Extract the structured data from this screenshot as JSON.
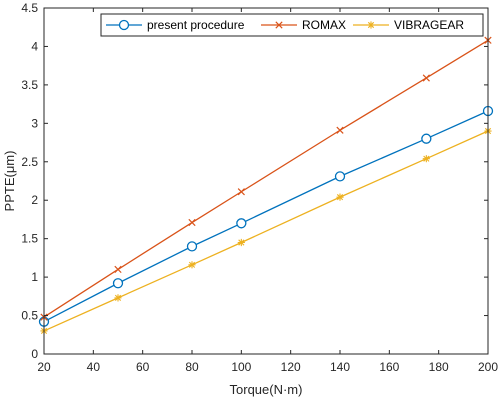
{
  "chart_data": {
    "type": "line",
    "xlabel": "Torque(N·m)",
    "ylabel": "PPTE(μm)",
    "xlim": [
      20,
      200
    ],
    "ylim": [
      0,
      4.5
    ],
    "x_ticks": [
      "20",
      "40",
      "60",
      "80",
      "100",
      "120",
      "140",
      "160",
      "180",
      "200"
    ],
    "y_ticks": [
      "0",
      "0.5",
      "1",
      "1.5",
      "2",
      "2.5",
      "3",
      "3.5",
      "4",
      "4.5"
    ],
    "grid": false,
    "legend_position": "top-right",
    "series": [
      {
        "name": "present procedure",
        "color": "#0072BD",
        "marker": "circle",
        "points": [
          [
            20,
            0.42
          ],
          [
            50,
            0.92
          ],
          [
            80,
            1.4
          ],
          [
            100,
            1.7
          ],
          [
            140,
            2.31
          ],
          [
            175,
            2.8
          ],
          [
            200,
            3.16
          ]
        ]
      },
      {
        "name": "ROMAX",
        "color": "#D95319",
        "marker": "x",
        "points": [
          [
            20,
            0.48
          ],
          [
            50,
            1.1
          ],
          [
            80,
            1.71
          ],
          [
            100,
            2.11
          ],
          [
            140,
            2.91
          ],
          [
            175,
            3.59
          ],
          [
            200,
            4.08
          ]
        ]
      },
      {
        "name": "VIBRAGEAR",
        "color": "#EDB120",
        "marker": "asterisk",
        "points": [
          [
            20,
            0.3
          ],
          [
            50,
            0.73
          ],
          [
            80,
            1.16
          ],
          [
            100,
            1.45
          ],
          [
            140,
            2.04
          ],
          [
            175,
            2.54
          ],
          [
            200,
            2.9
          ]
        ]
      }
    ]
  }
}
